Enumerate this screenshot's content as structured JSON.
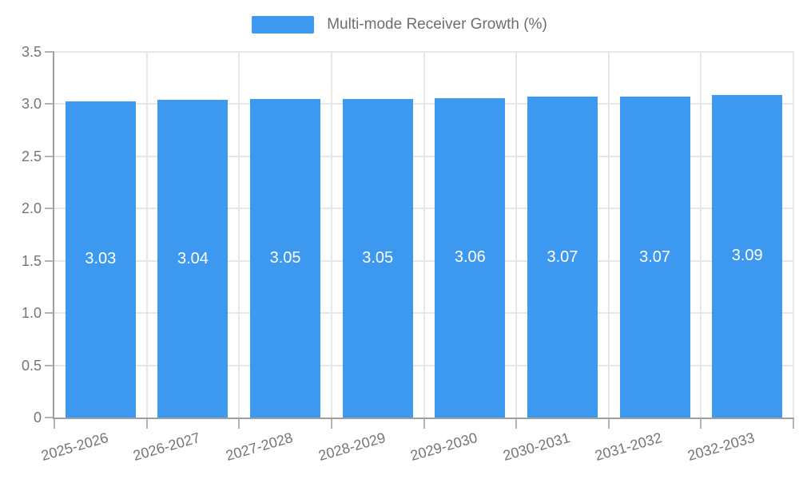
{
  "chart_data": {
    "type": "bar",
    "title": "Multi-mode Receiver Growth (%)",
    "categories": [
      "2025-2026",
      "2026-2027",
      "2027-2028",
      "2028-2029",
      "2029-2030",
      "2030-2031",
      "2031-2032",
      "2032-2033"
    ],
    "values": [
      3.03,
      3.04,
      3.05,
      3.05,
      3.06,
      3.07,
      3.07,
      3.09
    ],
    "value_labels": [
      "3.03",
      "3.04",
      "3.05",
      "3.05",
      "3.06",
      "3.07",
      "3.07",
      "3.09"
    ],
    "xlabel": "",
    "ylabel": "",
    "ylim": [
      0,
      3.5
    ],
    "ytick_step": 0.5,
    "ytick_labels": [
      "0",
      "0.5",
      "1.0",
      "1.5",
      "2.0",
      "2.5",
      "3.0",
      "3.5"
    ],
    "grid": true,
    "legend_position": "top-center",
    "x_label_rotation_deg": -16,
    "colors": {
      "bar": "#3D99EF",
      "grid": "#e7e7e7",
      "axis": "#9e9e9e",
      "tick": "#b3b3b3",
      "tick_label": "#757575",
      "legend_text": "#6e6e6e",
      "value_label": "#ffffff",
      "background": "#ffffff"
    }
  }
}
